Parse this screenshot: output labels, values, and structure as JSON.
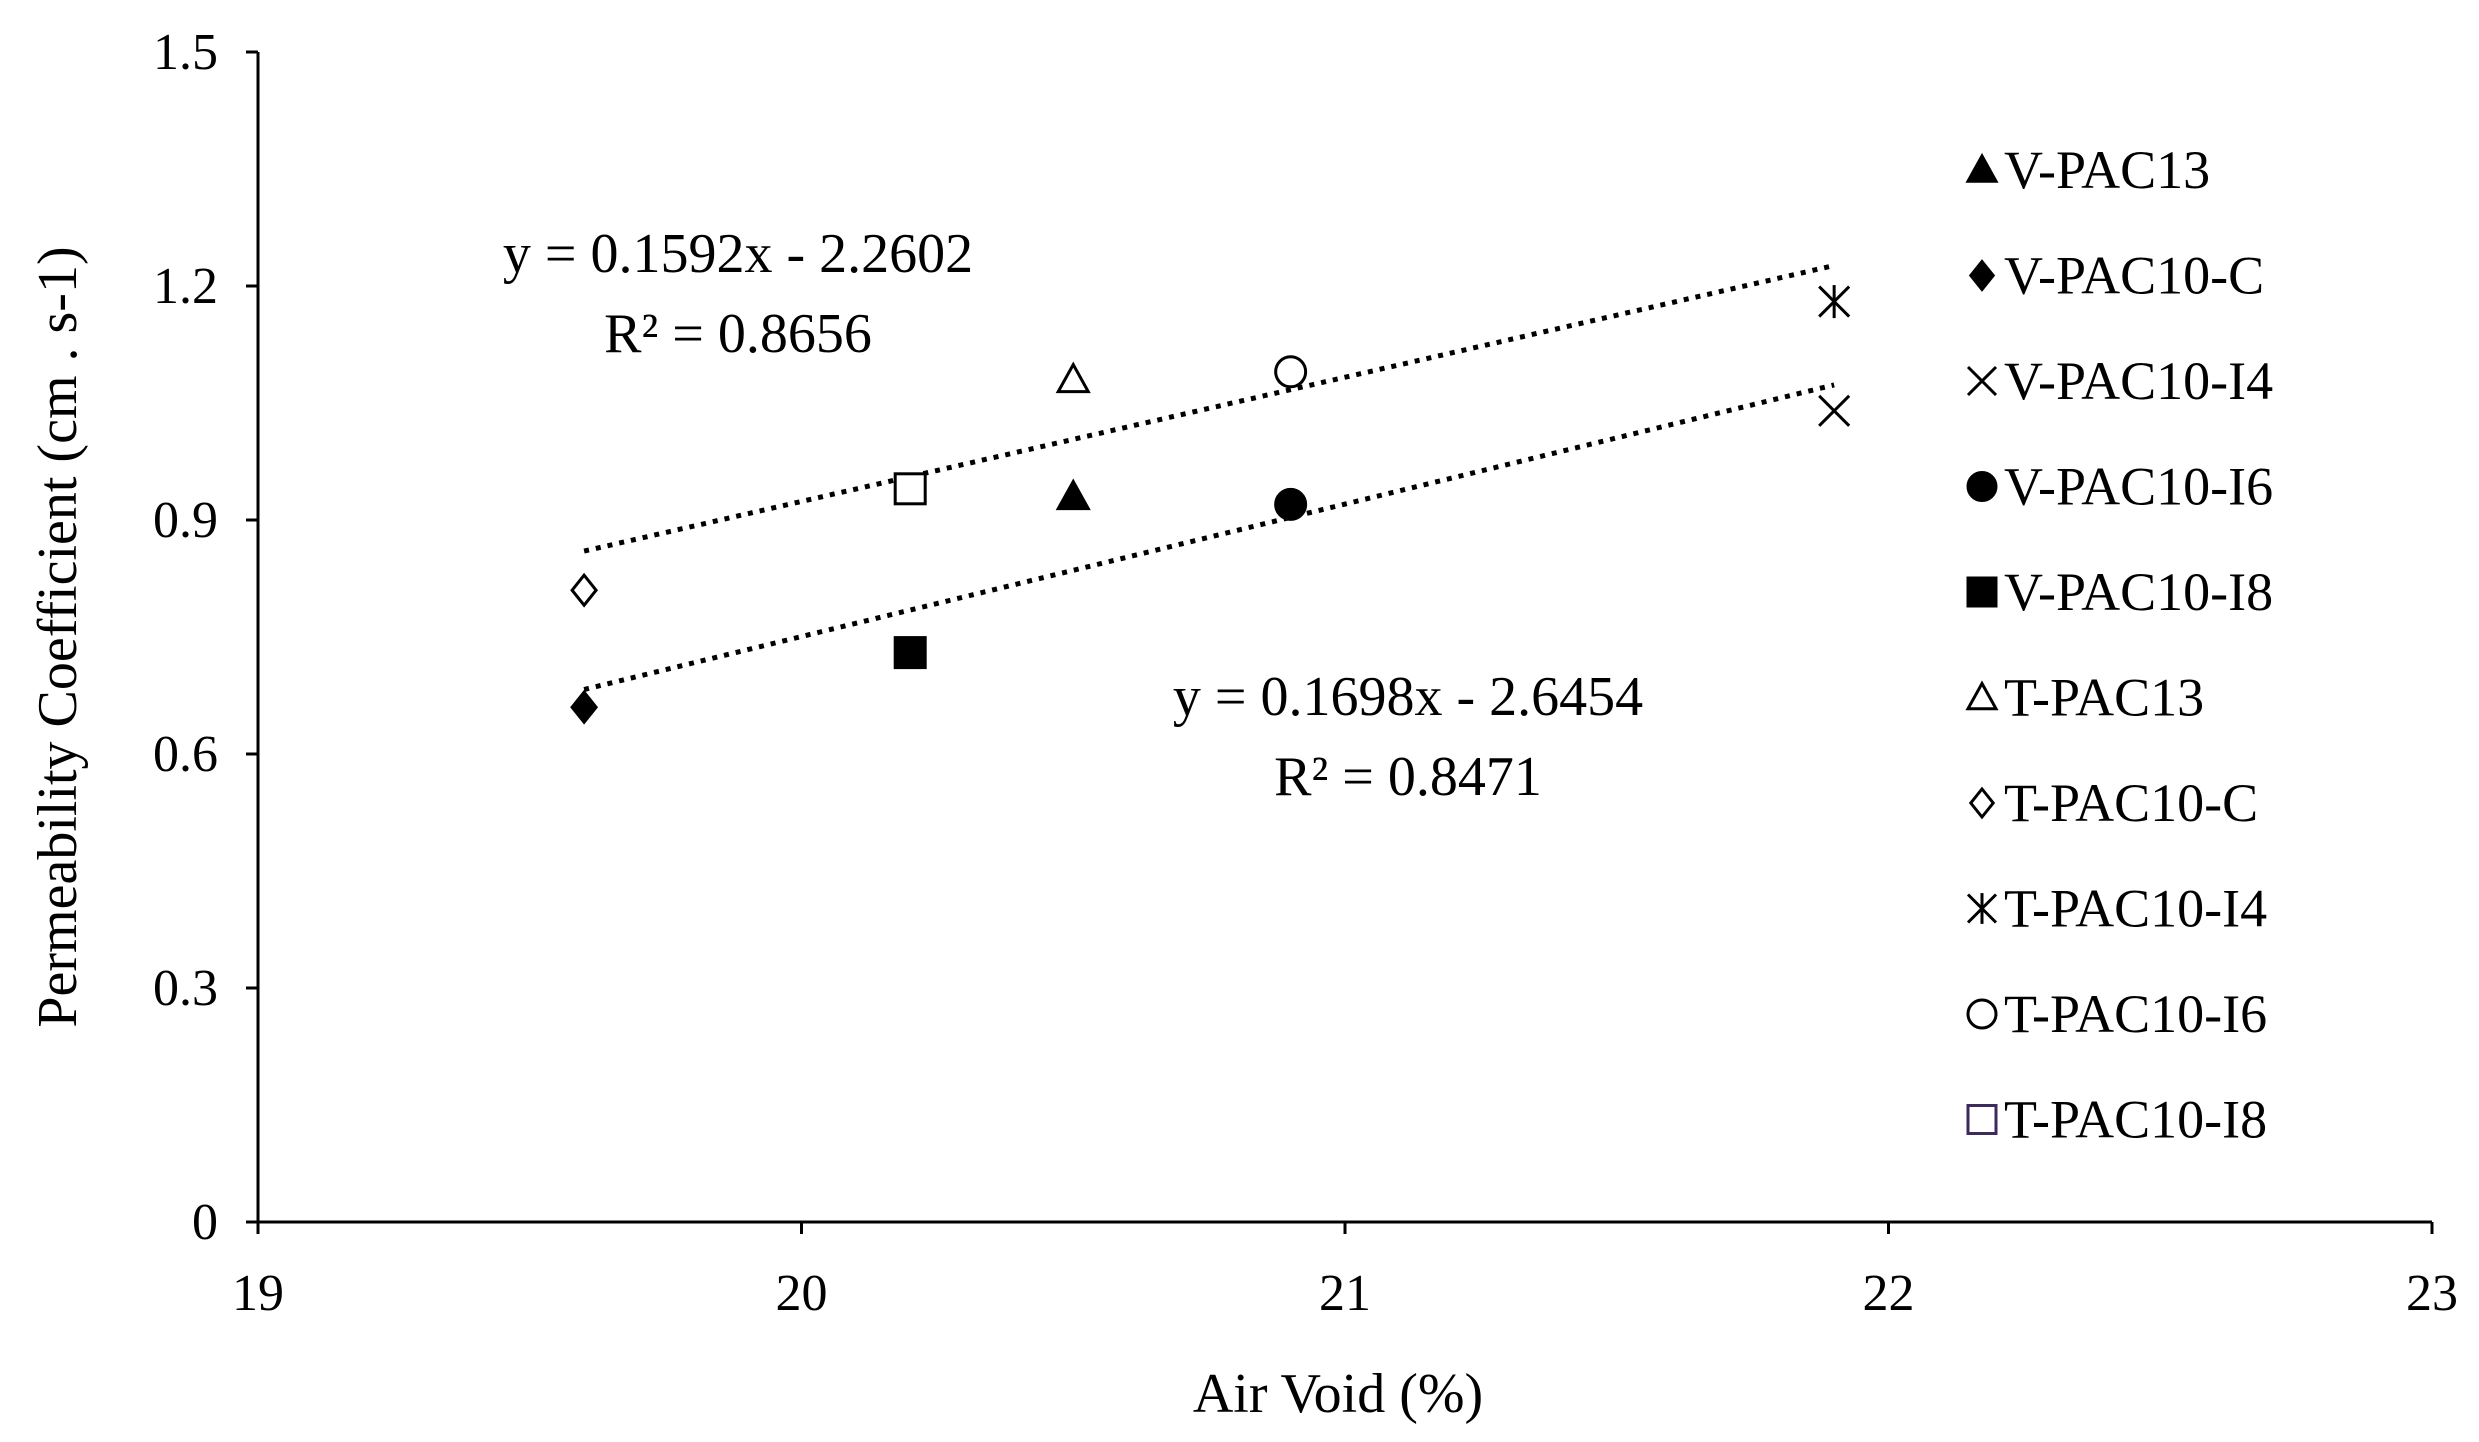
{
  "chart_data": {
    "type": "scatter",
    "title": "",
    "xlabel": "Air Void (%)",
    "ylabel": "Permeability Coefficient (cm . s-1)",
    "xlim": [
      19,
      23
    ],
    "ylim": [
      0,
      1.5
    ],
    "x_ticks": [
      "19",
      "20",
      "21",
      "22",
      "23"
    ],
    "y_ticks": [
      "0",
      "0.3",
      "0.6",
      "0.9",
      "1.2",
      "1.5"
    ],
    "grid": false,
    "legend_position": "right",
    "series": [
      {
        "name": "V-PAC13",
        "marker": "triangle-filled",
        "points": [
          {
            "x": 20.5,
            "y": 0.93
          }
        ]
      },
      {
        "name": "V-PAC10-C",
        "marker": "diamond-filled",
        "points": [
          {
            "x": 19.6,
            "y": 0.66
          }
        ]
      },
      {
        "name": "V-PAC10-I4",
        "marker": "x",
        "points": [
          {
            "x": 21.9,
            "y": 1.04
          }
        ]
      },
      {
        "name": "V-PAC10-I6",
        "marker": "circle-filled",
        "points": [
          {
            "x": 20.9,
            "y": 0.92
          }
        ]
      },
      {
        "name": "V-PAC10-I8",
        "marker": "square-filled",
        "points": [
          {
            "x": 20.2,
            "y": 0.73
          }
        ]
      },
      {
        "name": "T-PAC13",
        "marker": "triangle-open",
        "points": [
          {
            "x": 20.5,
            "y": 1.08
          }
        ]
      },
      {
        "name": "T-PAC10-C",
        "marker": "diamond-open",
        "points": [
          {
            "x": 19.6,
            "y": 0.81
          }
        ]
      },
      {
        "name": "T-PAC10-I4",
        "marker": "asterisk",
        "points": [
          {
            "x": 21.9,
            "y": 1.18
          }
        ]
      },
      {
        "name": "T-PAC10-I6",
        "marker": "circle-open",
        "points": [
          {
            "x": 20.9,
            "y": 1.09
          }
        ]
      },
      {
        "name": "T-PAC10-I8",
        "marker": "square-open",
        "points": [
          {
            "x": 20.2,
            "y": 0.94
          }
        ]
      }
    ],
    "trendlines": [
      {
        "equation": "y = 0.1592x - 2.2602",
        "r2": "R² = 0.8656",
        "slope": 0.1592,
        "intercept": -2.2602,
        "x_range": [
          19.6,
          21.9
        ]
      },
      {
        "equation": "y = 0.1698x - 2.6454",
        "r2": "R² = 0.8471",
        "slope": 0.1698,
        "intercept": -2.6454,
        "x_range": [
          19.6,
          21.9
        ]
      }
    ]
  },
  "colors": {
    "marker": "#000000",
    "legend_open_square": "#3d2a5c"
  }
}
